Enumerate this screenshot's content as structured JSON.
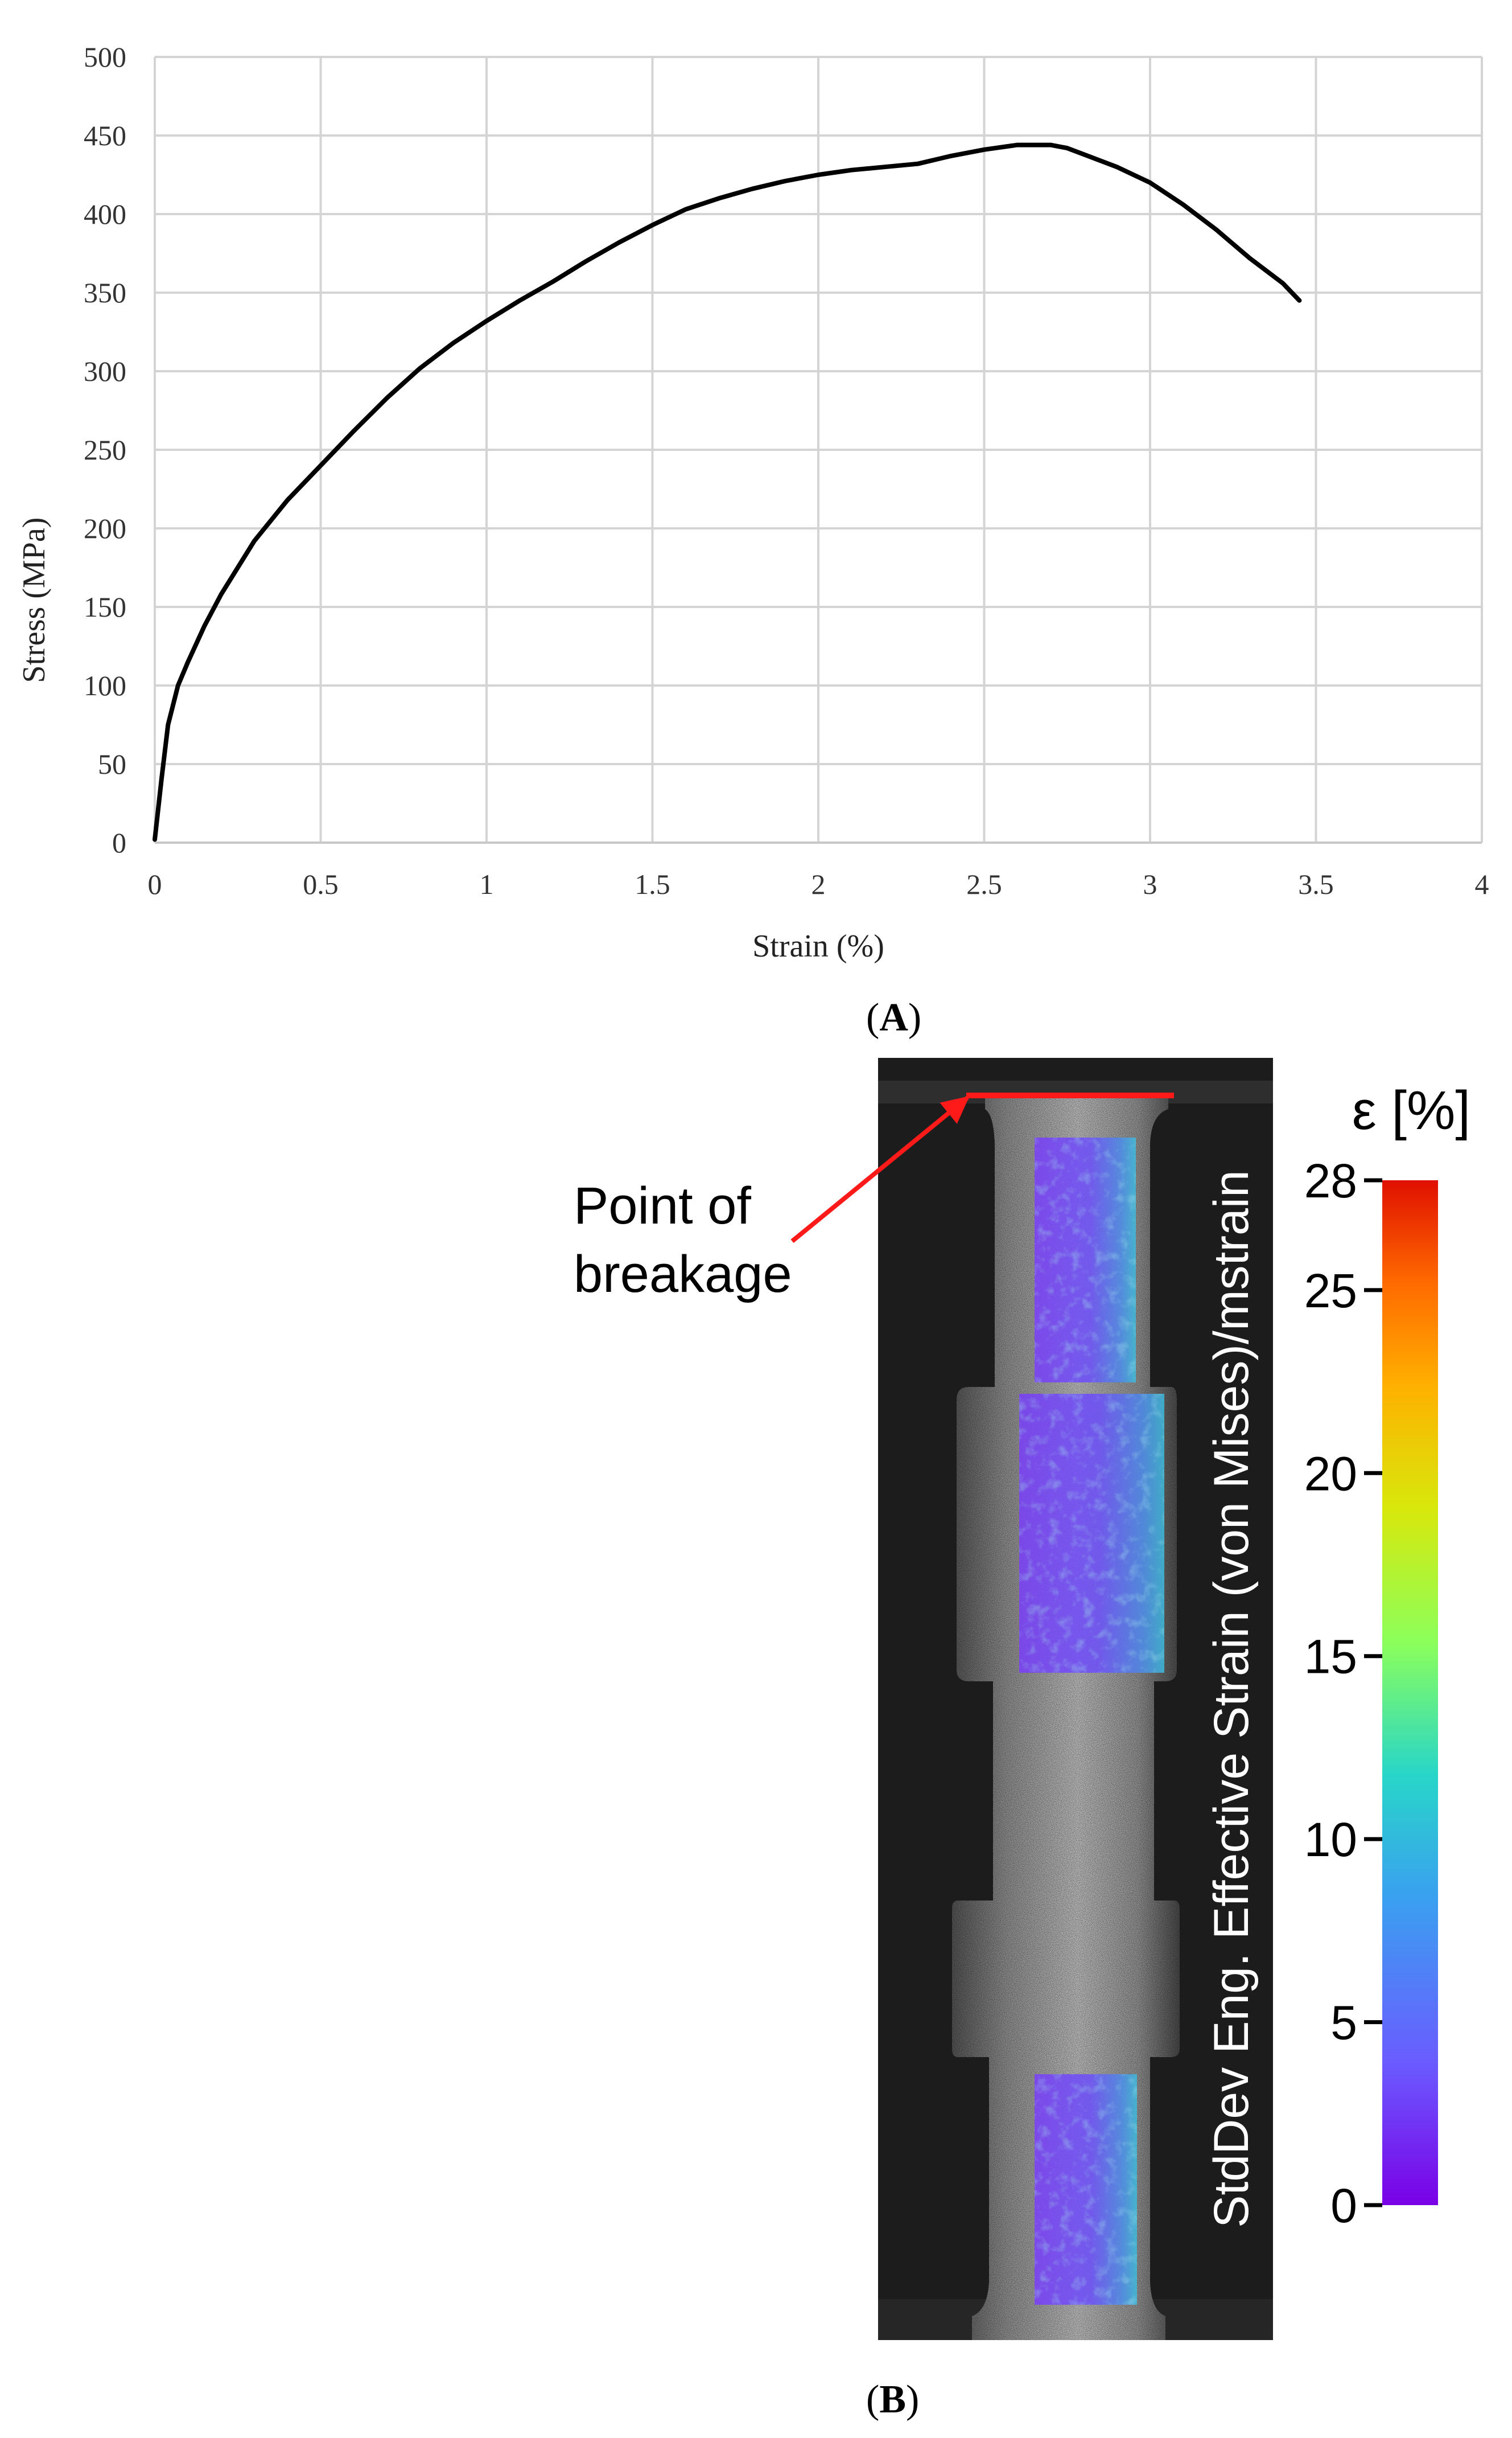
{
  "chart_data": {
    "type": "line",
    "xlabel": "Strain (%)",
    "ylabel": "Stress (MPa)",
    "xlim": [
      0,
      4
    ],
    "ylim": [
      0,
      500
    ],
    "xticks": [
      "0",
      "0.5",
      "1",
      "1.5",
      "2",
      "2.5",
      "3",
      "3.5",
      "4"
    ],
    "yticks": [
      "0",
      "50",
      "100",
      "150",
      "200",
      "250",
      "300",
      "350",
      "400",
      "450",
      "500"
    ],
    "grid": true,
    "series": [
      {
        "color": "#000000",
        "x": [
          0.0,
          0.02,
          0.04,
          0.07,
          0.1,
          0.15,
          0.2,
          0.3,
          0.4,
          0.5,
          0.6,
          0.7,
          0.8,
          0.9,
          1.0,
          1.1,
          1.2,
          1.3,
          1.4,
          1.5,
          1.6,
          1.7,
          1.8,
          1.9,
          2.0,
          2.1,
          2.2,
          2.3,
          2.4,
          2.5,
          2.6,
          2.7,
          2.75,
          2.8,
          2.9,
          3.0,
          3.1,
          3.2,
          3.3,
          3.4,
          3.45
        ],
        "y": [
          2,
          40,
          75,
          100,
          115,
          138,
          158,
          192,
          218,
          240,
          262,
          283,
          302,
          318,
          332,
          345,
          357,
          370,
          382,
          393,
          403,
          410,
          416,
          421,
          425,
          428,
          430,
          432,
          437,
          441,
          444,
          444,
          442,
          438,
          430,
          420,
          406,
          390,
          372,
          356,
          345
        ]
      }
    ]
  },
  "panels": {
    "a_label": "A",
    "b_label": "B"
  },
  "photo": {
    "overlay_title": "StdDev Eng. Effective Strain (von Mises)/mstrain",
    "annotation_line1": "Point of",
    "annotation_line2": "breakage",
    "breakage_color": "#ff1a1a"
  },
  "colorbar": {
    "title": "ε [%]",
    "ticks": [
      "28",
      "25",
      "20",
      "15",
      "10",
      "5",
      "0"
    ],
    "range": [
      0,
      28
    ]
  }
}
